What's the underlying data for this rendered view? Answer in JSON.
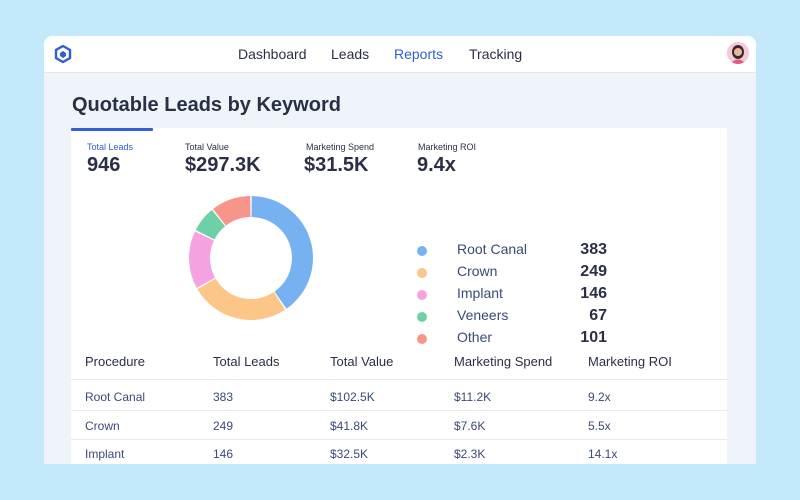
{
  "nav": {
    "items": [
      {
        "label": "Dashboard"
      },
      {
        "label": "Leads"
      },
      {
        "label": "Reports"
      },
      {
        "label": "Tracking"
      }
    ],
    "active": "Reports"
  },
  "page": {
    "title": "Quotable Leads by Keyword"
  },
  "stats": [
    {
      "label": "Total Leads",
      "value": "946"
    },
    {
      "label": "Total Value",
      "value": "$297.3K"
    },
    {
      "label": "Marketing Spend",
      "value": "$31.5K"
    },
    {
      "label": "Marketing ROI",
      "value": "9.4x"
    }
  ],
  "colors": {
    "accent": "#2f5fd0",
    "root_canal": "#76b2f2",
    "crown": "#fcc688",
    "implant": "#f5a2e0",
    "veneers": "#6fd0a8",
    "other": "#f8958b"
  },
  "chart_data": {
    "type": "pie",
    "categories": [
      "Root Canal",
      "Crown",
      "Implant",
      "Veneers",
      "Other"
    ],
    "values": [
      383,
      249,
      146,
      67,
      101
    ]
  },
  "legend": [
    {
      "label": "Root Canal",
      "count": "383"
    },
    {
      "label": "Crown",
      "count": "249"
    },
    {
      "label": "Implant",
      "count": "146"
    },
    {
      "label": "Veneers",
      "count": "67"
    },
    {
      "label": "Other",
      "count": "101"
    }
  ],
  "table": {
    "headers": [
      "Procedure",
      "Total Leads",
      "Total Value",
      "Marketing Spend",
      "Marketing ROI"
    ],
    "rows": [
      [
        "Root Canal",
        "383",
        "$102.5K",
        "$11.2K",
        "9.2x"
      ],
      [
        "Crown",
        "249",
        "$41.8K",
        "$7.6K",
        "5.5x"
      ],
      [
        "Implant",
        "146",
        "$32.5K",
        "$2.3K",
        "14.1x"
      ]
    ]
  }
}
